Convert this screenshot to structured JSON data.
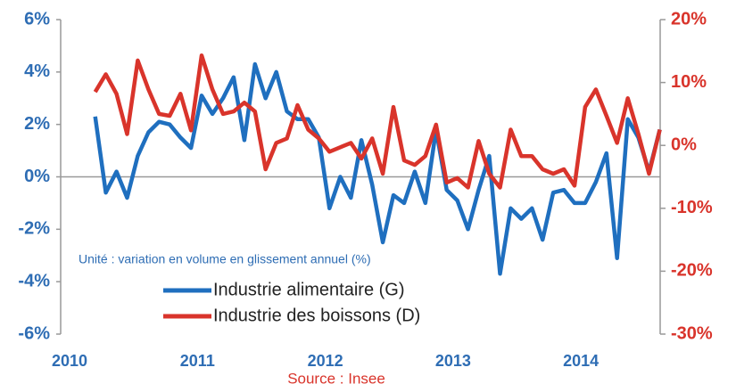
{
  "chart_data": {
    "type": "line",
    "annotation": "Unité : variation en volume en glissement annuel (%)",
    "source": "Source : Insee",
    "x": [
      2010.2,
      2010.283,
      2010.367,
      2010.45,
      2010.533,
      2010.617,
      2010.7,
      2010.783,
      2010.867,
      2010.95,
      2011.033,
      2011.117,
      2011.2,
      2011.283,
      2011.367,
      2011.45,
      2011.533,
      2011.617,
      2011.7,
      2011.783,
      2011.867,
      2011.95,
      2012.033,
      2012.117,
      2012.2,
      2012.283,
      2012.367,
      2012.45,
      2012.533,
      2012.617,
      2012.7,
      2012.783,
      2012.867,
      2012.95,
      2013.033,
      2013.117,
      2013.2,
      2013.283,
      2013.367,
      2013.45,
      2013.533,
      2013.617,
      2013.7,
      2013.783,
      2013.867,
      2013.95,
      2014.033,
      2014.117,
      2014.2,
      2014.283,
      2014.367,
      2014.45,
      2014.533,
      2014.617
    ],
    "series": [
      {
        "name": "Industrie alimentaire (G)",
        "color": "#1f6fbf",
        "values": [
          2.3,
          -0.6,
          0.2,
          -0.8,
          0.8,
          1.7,
          2.1,
          2.0,
          1.5,
          1.1,
          3.1,
          2.4,
          3.0,
          3.8,
          1.4,
          4.3,
          3.0,
          4.0,
          2.5,
          2.2,
          2.2,
          1.5,
          -1.2,
          0.0,
          -0.8,
          1.4,
          -0.3,
          -2.5,
          -0.7,
          -1.0,
          0.2,
          -1.0,
          1.8,
          -0.5,
          -0.9,
          -2.0,
          -0.5,
          0.8,
          -3.7,
          -1.2,
          -1.6,
          -1.2,
          -2.4,
          -0.6,
          -0.5,
          -1.0,
          -1.0,
          -0.2,
          0.9,
          -3.1,
          2.2,
          1.5,
          0.2,
          1.8
        ]
      },
      {
        "name": "Industrie des boissons (D)",
        "color": "#d9342b",
        "axis": "y2",
        "values": [
          8.5,
          11.3,
          8.2,
          1.8,
          13.5,
          8.9,
          5.0,
          4.7,
          8.2,
          2.4,
          14.3,
          8.9,
          5.0,
          5.4,
          6.8,
          5.4,
          -3.8,
          0.4,
          1.1,
          6.4,
          2.5,
          1.1,
          -1.0,
          -0.3,
          0.4,
          -2.1,
          1.1,
          -4.5,
          6.1,
          -2.4,
          -3.1,
          -1.7,
          3.3,
          -5.9,
          -5.2,
          -6.7,
          0.7,
          -4.5,
          -6.7,
          2.5,
          -1.7,
          -1.7,
          -3.8,
          -4.5,
          -3.8,
          -6.4,
          6.1,
          8.9,
          4.7,
          0.4,
          7.5,
          1.8,
          -4.5,
          2.5
        ]
      }
    ],
    "xlim": [
      2009.93,
      2014.62
    ],
    "xticks": [
      2010,
      2011,
      2012,
      2013,
      2014
    ],
    "ylim": [
      -6,
      6
    ],
    "yticks": [
      {
        "value": -6,
        "label": "-6%"
      },
      {
        "value": -4,
        "label": "-4%"
      },
      {
        "value": -2,
        "label": "-2%"
      },
      {
        "value": 0,
        "label": "0%"
      },
      {
        "value": 2,
        "label": "2%"
      },
      {
        "value": 4,
        "label": "4%"
      },
      {
        "value": 6,
        "label": "6%"
      }
    ],
    "y2lim": [
      -30,
      20
    ],
    "y2ticks": [
      {
        "value": -30,
        "label": "-30%"
      },
      {
        "value": -20,
        "label": "-20%"
      },
      {
        "value": -10,
        "label": "-10%"
      },
      {
        "value": 0,
        "label": "0%"
      },
      {
        "value": 10,
        "label": "10%"
      },
      {
        "value": 20,
        "label": "20%"
      }
    ]
  }
}
